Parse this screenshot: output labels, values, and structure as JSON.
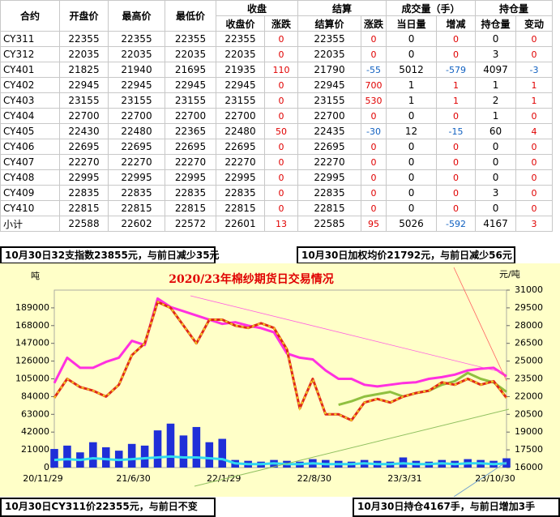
{
  "table": {
    "header1": [
      "合约",
      "开盘价",
      "最高价",
      "最低价",
      "收盘",
      "结算",
      "成交量（手）",
      "持仓量"
    ],
    "header2": [
      "收盘价",
      "涨跌",
      "结算价",
      "涨跌",
      "当日量",
      "增减",
      "持仓量",
      "变动"
    ],
    "rows": [
      [
        "CY311",
        22355,
        22355,
        22355,
        22355,
        0,
        22355,
        0,
        0,
        0,
        0,
        0
      ],
      [
        "CY312",
        22035,
        22035,
        22035,
        22035,
        0,
        22035,
        0,
        0,
        0,
        3,
        0
      ],
      [
        "CY401",
        21825,
        21940,
        21695,
        21935,
        110,
        21790,
        -55,
        5012,
        -579,
        4097,
        -3
      ],
      [
        "CY402",
        22945,
        22945,
        22945,
        22945,
        0,
        22945,
        700,
        1,
        1,
        1,
        1
      ],
      [
        "CY403",
        23155,
        23155,
        23155,
        23155,
        0,
        23155,
        530,
        1,
        1,
        2,
        1
      ],
      [
        "CY404",
        22700,
        22700,
        22700,
        22700,
        0,
        22700,
        0,
        0,
        0,
        1,
        0
      ],
      [
        "CY405",
        22430,
        22480,
        22365,
        22480,
        50,
        22435,
        -30,
        12,
        -15,
        60,
        4
      ],
      [
        "CY406",
        22695,
        22695,
        22695,
        22695,
        0,
        22695,
        0,
        0,
        0,
        0,
        0
      ],
      [
        "CY407",
        22270,
        22270,
        22270,
        22270,
        0,
        22270,
        0,
        0,
        0,
        0,
        0
      ],
      [
        "CY408",
        22995,
        22995,
        22995,
        22995,
        0,
        22995,
        0,
        0,
        0,
        0,
        0
      ],
      [
        "CY409",
        22835,
        22835,
        22835,
        22835,
        0,
        22835,
        0,
        0,
        0,
        3,
        0
      ],
      [
        "CY410",
        22815,
        22815,
        22815,
        22815,
        0,
        22815,
        0,
        0,
        0,
        0,
        0
      ],
      [
        "小计",
        22588,
        22602,
        22572,
        22601,
        13,
        22585,
        95,
        5026,
        -592,
        4167,
        3
      ]
    ]
  },
  "notes": [
    "10月30日32支指数23855元，与前日减少35元",
    "10月30日加权均价21792元，与前日减少56元",
    "10月30日CY311价22355元，与前日不变",
    "10月30日持仓4167手，与前日增加3手"
  ],
  "chart_data": {
    "type": "line",
    "title": "2020/23年棉纱期货日交易情况",
    "y_label": "吨",
    "y2_label": "元/吨",
    "categories": [
      "20/11/29",
      null,
      null,
      null,
      null,
      null,
      null,
      "21/6/30",
      null,
      null,
      null,
      null,
      null,
      null,
      "22/1/29",
      null,
      null,
      null,
      null,
      null,
      null,
      "22/8/30",
      null,
      null,
      null,
      null,
      null,
      null,
      "23/3/31",
      null,
      null,
      null,
      null,
      null,
      null,
      "23/10/30"
    ],
    "ylim": [
      0,
      210000
    ],
    "yticks": [
      0,
      21000,
      42000,
      63000,
      84000,
      105000,
      126000,
      147000,
      168000,
      189000
    ],
    "y2lim": [
      16000,
      31000
    ],
    "y2ticks": [
      16000,
      17500,
      19000,
      20500,
      22000,
      23500,
      25000,
      26500,
      28000,
      29500,
      31000
    ],
    "background": "#ffffc8",
    "series": [
      {
        "kind": "bar",
        "color": "#1f2fd8",
        "values": [
          22000,
          26000,
          18000,
          30000,
          24000,
          20000,
          28000,
          26000,
          44000,
          52000,
          38000,
          48000,
          30000,
          34000,
          9000,
          8000,
          7000,
          9000,
          8000,
          7000,
          10000,
          9000,
          8000,
          7000,
          9000,
          8000,
          7000,
          12000,
          8000,
          7000,
          9000,
          8000,
          10000,
          9000,
          8000,
          11000
        ]
      },
      {
        "kind": "line",
        "color": "#30d8f0",
        "values": [
          9000,
          10000,
          9000,
          11000,
          10000,
          9000,
          10000,
          11000,
          12000,
          13000,
          12000,
          12000,
          11000,
          10000,
          5000,
          4000,
          4000,
          5000,
          4000,
          4000,
          5000,
          4000,
          4000,
          4000,
          5000,
          4000,
          4000,
          5000,
          4000,
          4000,
          5000,
          4000,
          5000,
          5000,
          4000,
          5000
        ]
      },
      {
        "kind": "line",
        "color": "#ff30e0",
        "values": [
          100000,
          130000,
          118000,
          118000,
          125000,
          130000,
          150000,
          145000,
          200000,
          190000,
          185000,
          180000,
          175000,
          170000,
          172000,
          168000,
          165000,
          160000,
          135000,
          130000,
          128000,
          115000,
          105000,
          105000,
          98000,
          96000,
          98000,
          100000,
          101000,
          105000,
          107000,
          110000,
          115000,
          117000,
          118000,
          108000
        ]
      },
      {
        "kind": "line",
        "axis": "y2",
        "color": "#90c040",
        "values": [
          null,
          null,
          null,
          null,
          null,
          null,
          null,
          null,
          null,
          null,
          null,
          null,
          null,
          null,
          null,
          null,
          null,
          null,
          null,
          null,
          null,
          null,
          21300,
          21600,
          22000,
          22200,
          22400,
          22000,
          22300,
          22500,
          23000,
          23300,
          24000,
          23500,
          23200,
          22400
        ]
      },
      {
        "kind": "line",
        "axis": "y2",
        "color": "#e02818",
        "dash_color": "#f0d020",
        "values": [
          21900,
          23500,
          22800,
          22500,
          22000,
          23000,
          25500,
          26500,
          30000,
          29500,
          28000,
          26500,
          28500,
          28500,
          28000,
          27800,
          28200,
          27800,
          26000,
          21000,
          23500,
          20500,
          20500,
          20000,
          21500,
          21800,
          21500,
          22000,
          22300,
          22500,
          23200,
          23000,
          23500,
          23000,
          23300,
          21900
        ]
      }
    ]
  }
}
